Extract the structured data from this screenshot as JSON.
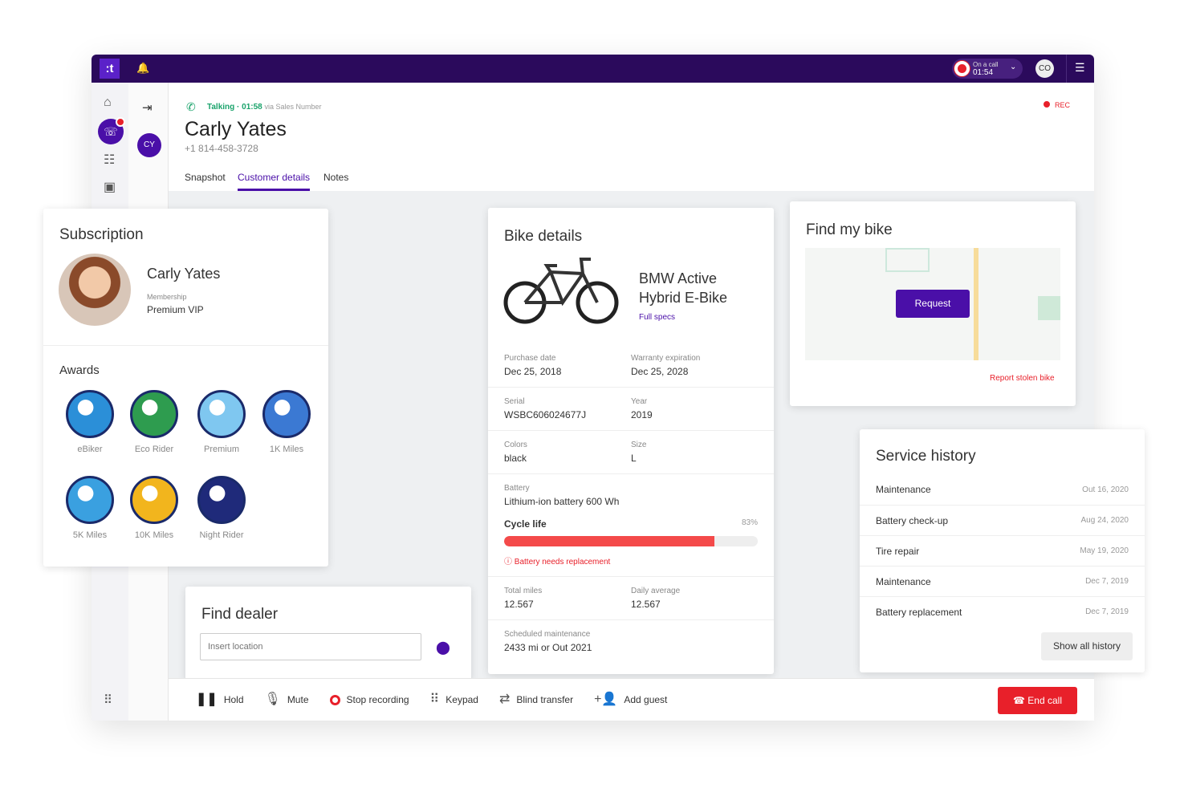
{
  "topbar": {
    "logo": ":t",
    "call_status": "On a call",
    "call_time": "01:54",
    "user_initials": "CO"
  },
  "contact": {
    "initials": "CY",
    "status": "Talking · 01:58",
    "via": "via Sales Number",
    "name": "Carly Yates",
    "phone": "+1 814-458-3728",
    "rec": "REC"
  },
  "tabs": [
    {
      "label": "Snapshot"
    },
    {
      "label": "Customer details",
      "active": true
    },
    {
      "label": "Notes"
    }
  ],
  "subscription": {
    "title": "Subscription",
    "name": "Carly Yates",
    "membership_label": "Membership",
    "membership": "Premium VIP",
    "awards_title": "Awards",
    "awards": [
      {
        "label": "eBiker",
        "color": "#2b8fd8"
      },
      {
        "label": "Eco Rider",
        "color": "#2e9c4f"
      },
      {
        "label": "Premium",
        "color": "#7fc7f0"
      },
      {
        "label": "1K Miles",
        "color": "#3b79d3"
      },
      {
        "label": "5K Miles",
        "color": "#3aa0e0"
      },
      {
        "label": "10K Miles",
        "color": "#f2b51d"
      },
      {
        "label": "Night Rider",
        "color": "#1f2a7a"
      }
    ]
  },
  "dealer": {
    "title": "Find dealer",
    "placeholder": "Insert location"
  },
  "bike": {
    "title": "Bike details",
    "model": "BMW Active Hybrid E-Bike",
    "full_specs": "Full specs",
    "purchase_label": "Purchase date",
    "purchase": "Dec 25, 2018",
    "warranty_label": "Warranty expiration",
    "warranty": "Dec 25, 2028",
    "serial_label": "Serial",
    "serial": "WSBC606024677J",
    "year_label": "Year",
    "year": "2019",
    "colors_label": "Colors",
    "colors": "black",
    "size_label": "Size",
    "size": "L",
    "battery_label": "Battery",
    "battery": "Lithium-ion battery 600 Wh",
    "cycle_label": "Cycle life",
    "cycle_pct": "83%",
    "cycle_value": 83,
    "warning": "Battery needs replacement",
    "miles_label": "Total miles",
    "miles": "12.567",
    "daily_label": "Daily average",
    "daily": "12.567",
    "maint_label": "Scheduled maintenance",
    "maint": "2433 mi or Out 2021"
  },
  "findbike": {
    "title": "Find my bike",
    "request": "Request",
    "report": "Report stolen bike"
  },
  "service": {
    "title": "Service history",
    "items": [
      {
        "name": "Maintenance",
        "date": "Out 16, 2020"
      },
      {
        "name": "Battery check-up",
        "date": "Aug 24, 2020"
      },
      {
        "name": "Tire repair",
        "date": "May 19, 2020"
      },
      {
        "name": "Maintenance",
        "date": "Dec 7, 2019"
      },
      {
        "name": "Battery replacement",
        "date": "Dec 7, 2019"
      }
    ],
    "show_all": "Show all history"
  },
  "callbar": {
    "hold": "Hold",
    "mute": "Mute",
    "stop": "Stop recording",
    "keypad": "Keypad",
    "transfer": "Blind transfer",
    "guest": "Add guest",
    "end": "End call"
  },
  "colors": {
    "brand": "#2b0a5c",
    "accent": "#4a0fa8",
    "danger": "#e8202a",
    "talking": "#1aa36b"
  }
}
